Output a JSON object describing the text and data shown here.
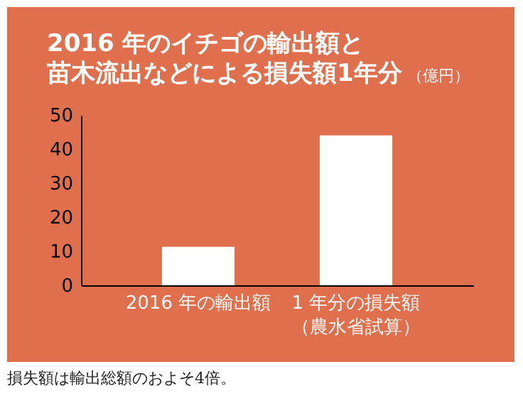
{
  "chart_data": {
    "type": "bar",
    "title": "2016 年のイチゴの輸出額と",
    "subtitle": "苗木流出などによる損失額1年分",
    "ylabel": "（億円）",
    "categories": [
      "2016 年の輸出額",
      "1 年分の損失額（農水省試算）"
    ],
    "values": [
      11.3,
      44
    ],
    "color": "#ffffff",
    "ylim": [
      0,
      50
    ],
    "yticks": [
      0,
      10,
      20,
      30,
      40,
      50
    ],
    "grid": false,
    "annotations": [
      "損失額は輸出総額のおよそ4倍。"
    ]
  }
}
